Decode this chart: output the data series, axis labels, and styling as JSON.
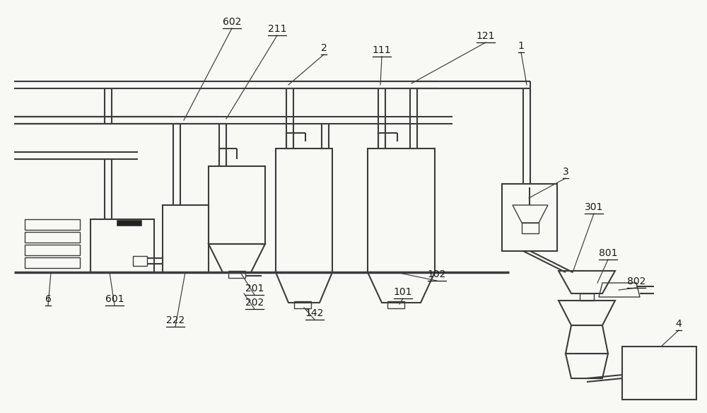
{
  "bg": "#f8f8f5",
  "lc": "#3c3c3c",
  "lw": 1.5,
  "lwt": 1.0,
  "lwT": 2.5,
  "figw": 10.0,
  "figh": 5.84,
  "dpi": 100
}
